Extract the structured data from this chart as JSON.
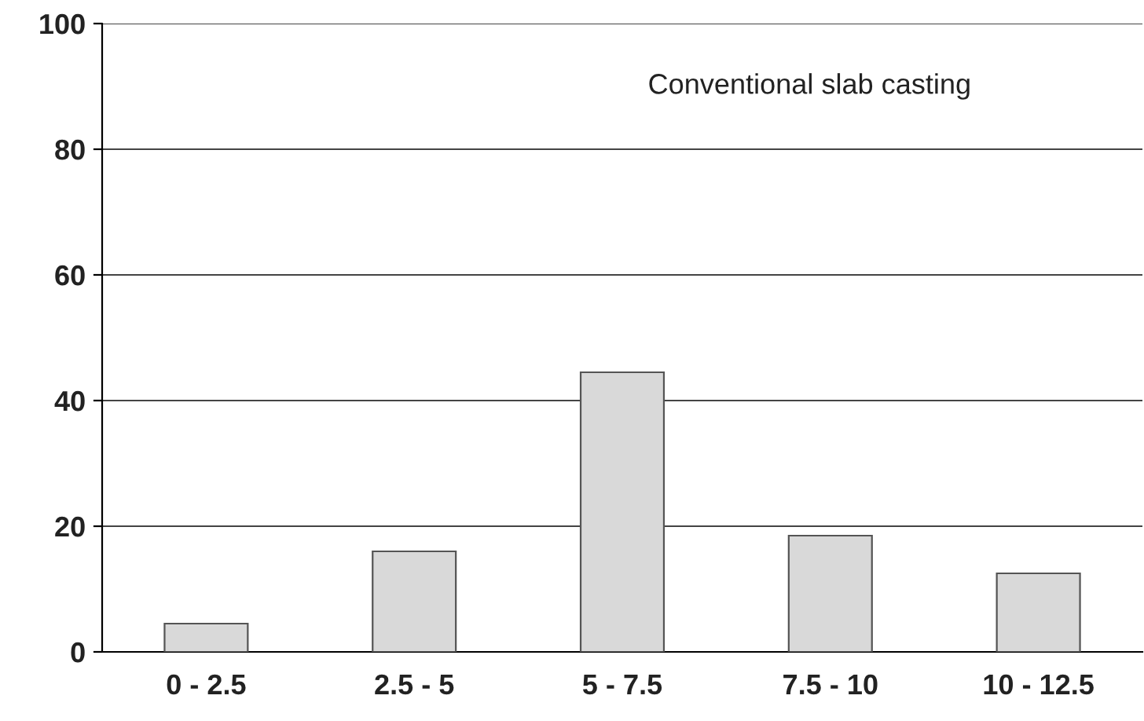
{
  "chart_data": {
    "type": "bar",
    "title": "Conventional slab casting",
    "categories": [
      "0 - 2.5",
      "2.5 - 5",
      "5 - 7.5",
      "7.5 - 10",
      "10 - 12.5"
    ],
    "values": [
      4.5,
      16,
      44.5,
      18.5,
      12.5
    ],
    "color": "#d9d9d9",
    "ylim": [
      0,
      100
    ],
    "yticks": [
      0,
      20,
      40,
      60,
      80,
      100
    ],
    "grid": "y",
    "legend": false
  }
}
